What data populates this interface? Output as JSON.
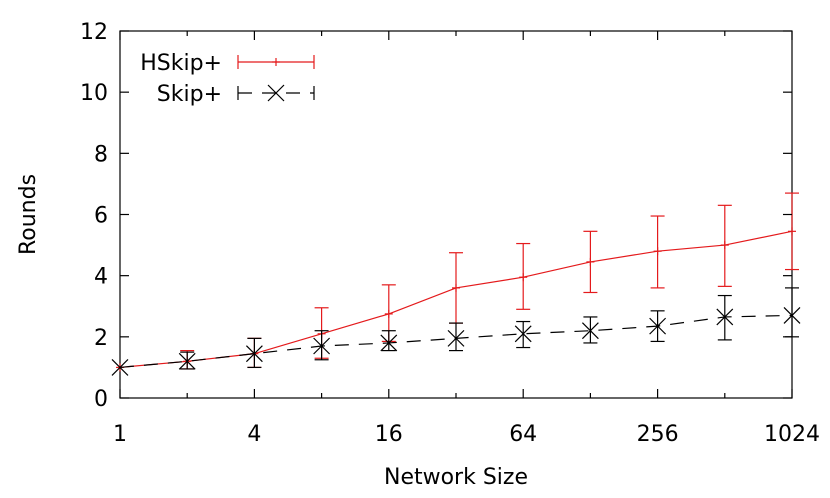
{
  "chart_data": {
    "type": "line",
    "x_scale": "log2",
    "xlabel": "Network Size",
    "ylabel": "Rounds",
    "xlim": [
      1,
      1024
    ],
    "ylim": [
      0,
      12
    ],
    "x_ticks": [
      1,
      4,
      16,
      64,
      256,
      1024
    ],
    "x_tick_labels": [
      "1",
      "4",
      "16",
      "64",
      "256",
      "1024"
    ],
    "y_ticks": [
      0,
      2,
      4,
      6,
      8,
      10,
      12
    ],
    "y_tick_labels": [
      "0",
      "2",
      "4",
      "6",
      "8",
      "10",
      "12"
    ],
    "grid": false,
    "legend_position": "top-left",
    "series": [
      {
        "name": "HSkip+",
        "color": "#e41a1c",
        "line_style": "solid",
        "marker": "plus",
        "x": [
          1,
          2,
          4,
          8,
          16,
          32,
          64,
          128,
          256,
          512,
          1024
        ],
        "y": [
          1.0,
          1.2,
          1.45,
          2.1,
          2.75,
          3.6,
          3.95,
          4.45,
          4.8,
          5.0,
          5.45
        ],
        "y_low": [
          1.0,
          0.95,
          1.0,
          1.3,
          1.85,
          2.45,
          2.9,
          3.45,
          3.6,
          3.65,
          4.2
        ],
        "y_high": [
          1.0,
          1.55,
          1.95,
          2.95,
          3.7,
          4.75,
          5.05,
          5.45,
          5.95,
          6.3,
          6.7
        ]
      },
      {
        "name": "Skip+",
        "color": "#000000",
        "line_style": "dashed",
        "marker": "x",
        "x": [
          1,
          2,
          4,
          8,
          16,
          32,
          64,
          128,
          256,
          512,
          1024
        ],
        "y": [
          1.0,
          1.2,
          1.45,
          1.7,
          1.8,
          1.95,
          2.1,
          2.2,
          2.35,
          2.65,
          2.7
        ],
        "y_low": [
          1.0,
          0.95,
          1.0,
          1.25,
          1.55,
          1.55,
          1.65,
          1.8,
          1.85,
          1.9,
          2.0
        ],
        "y_high": [
          1.0,
          1.5,
          1.95,
          2.2,
          2.2,
          2.45,
          2.5,
          2.65,
          2.85,
          3.35,
          3.6
        ]
      }
    ]
  }
}
